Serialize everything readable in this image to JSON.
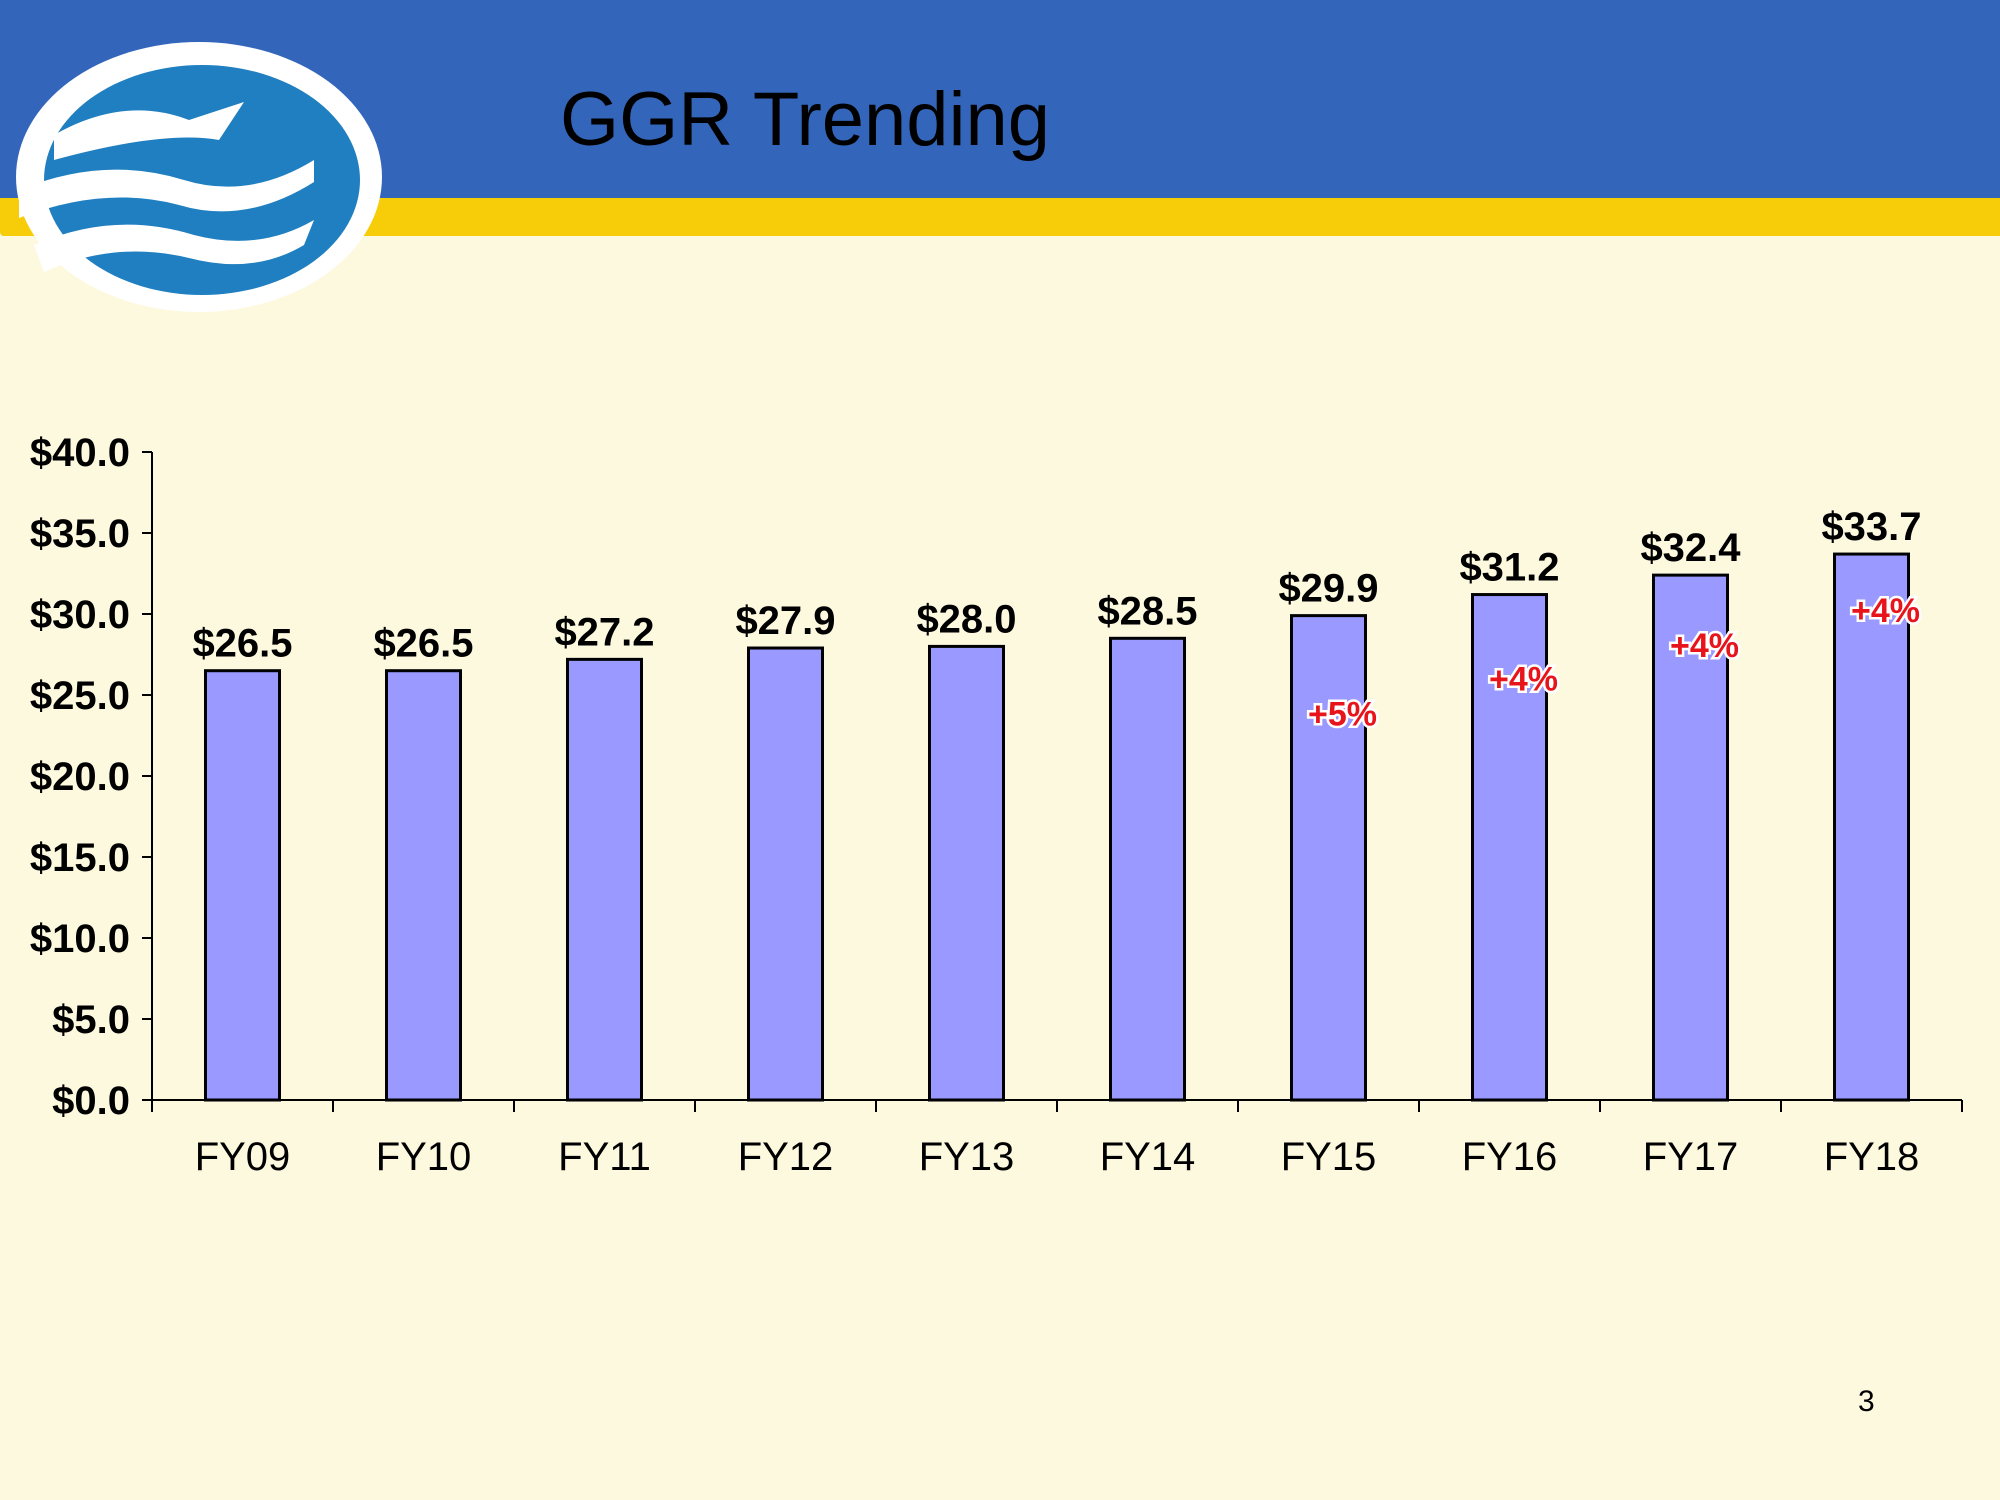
{
  "slide": {
    "title": "GGR Trending",
    "page_number": "3"
  },
  "colors": {
    "header": "#3366bb",
    "stripe": "#f7cc08",
    "background": "#fdf9df",
    "bar_fill": "#9999ff",
    "growth_label": "#e8141b"
  },
  "logo": {
    "icon": "eagle-wave-logo-icon"
  },
  "chart_data": {
    "type": "bar",
    "title": "",
    "xlabel": "",
    "ylabel": "",
    "categories": [
      "FY09",
      "FY10",
      "FY11",
      "FY12",
      "FY13",
      "FY14",
      "FY15",
      "FY16",
      "FY17",
      "FY18"
    ],
    "values": [
      26.5,
      26.5,
      27.2,
      27.9,
      28.0,
      28.5,
      29.9,
      31.2,
      32.4,
      33.7
    ],
    "data_labels": [
      "$26.5",
      "$26.5",
      "$27.2",
      "$27.9",
      "$28.0",
      "$28.5",
      "$29.9",
      "$31.2",
      "$32.4",
      "$33.7"
    ],
    "ylim": [
      0,
      40
    ],
    "y_ticks": [
      0,
      5,
      10,
      15,
      20,
      25,
      30,
      35,
      40
    ],
    "y_tick_labels": [
      "$0.0",
      "$5.0",
      "$10.0",
      "$15.0",
      "$20.0",
      "$25.0",
      "$30.0",
      "$35.0",
      "$40.0"
    ],
    "grid": false,
    "legend": "none",
    "annotations": [
      {
        "category": "FY15",
        "text": "+5%"
      },
      {
        "category": "FY16",
        "text": "+4%"
      },
      {
        "category": "FY17",
        "text": "+4%"
      },
      {
        "category": "FY18",
        "text": "+4%"
      }
    ]
  }
}
